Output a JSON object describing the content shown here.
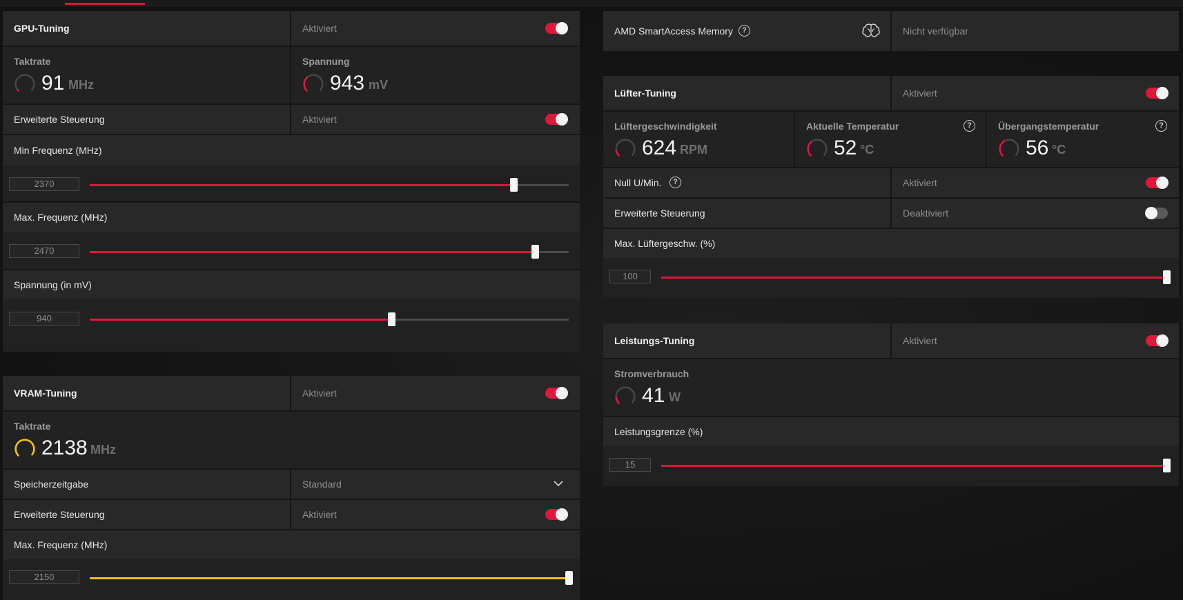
{
  "colors": {
    "accent": "#e0163a",
    "vram_accent": "#f5c211",
    "background": "#141414"
  },
  "gpu_tuning": {
    "title": "GPU-Tuning",
    "state": "Aktiviert",
    "enabled": true,
    "clock": {
      "label": "Taktrate",
      "value": "91",
      "unit": "MHz",
      "fraction": 0.03
    },
    "voltage": {
      "label": "Spannung",
      "value": "943",
      "unit": "mV",
      "fraction": 0.35
    },
    "advanced": {
      "label": "Erweiterte Steuerung",
      "state": "Aktiviert",
      "enabled": true
    },
    "min_freq": {
      "label": "Min Frequenz (MHz)",
      "value": "2370",
      "fraction": 0.885
    },
    "max_freq": {
      "label": "Max. Frequenz (MHz)",
      "value": "2470",
      "fraction": 0.93
    },
    "voltage_slider": {
      "label": "Spannung (in mV)",
      "value": "940",
      "fraction": 0.63
    }
  },
  "vram_tuning": {
    "title": "VRAM-Tuning",
    "state": "Aktiviert",
    "enabled": true,
    "clock": {
      "label": "Taktrate",
      "value": "2138",
      "unit": "MHz",
      "fraction": 0.97
    },
    "memory_timing": {
      "label": "Speicherzeitgabe",
      "value": "Standard"
    },
    "advanced": {
      "label": "Erweiterte Steuerung",
      "state": "Aktiviert",
      "enabled": true
    },
    "max_freq": {
      "label": "Max. Frequenz (MHz)",
      "value": "2150",
      "fraction": 1.0
    }
  },
  "smart_access": {
    "label": "AMD SmartAccess Memory",
    "state": "Nicht verfügbar",
    "help": "?",
    "icon": "brain-icon"
  },
  "fan_tuning": {
    "title": "Lüfter-Tuning",
    "state": "Aktiviert",
    "enabled": true,
    "fan_speed": {
      "label": "Lüftergeschwindigkeit",
      "value": "624",
      "unit": "RPM",
      "fraction": 0.12
    },
    "current_temp": {
      "label": "Aktuelle Temperatur",
      "value": "52",
      "unit": "°C",
      "fraction": 0.35,
      "help": "?"
    },
    "junction_temp": {
      "label": "Übergangstemperatur",
      "value": "56",
      "unit": "°C",
      "fraction": 0.38,
      "help": "?"
    },
    "zero_rpm": {
      "label": "Null U/Min.",
      "state": "Aktiviert",
      "enabled": true,
      "help": "?"
    },
    "advanced": {
      "label": "Erweiterte Steuerung",
      "state": "Deaktiviert",
      "enabled": false
    },
    "max_speed": {
      "label": "Max. Lüftergeschw. (%)",
      "value": "100",
      "fraction": 1.0
    }
  },
  "power_tuning": {
    "title": "Leistungs-Tuning",
    "state": "Aktiviert",
    "enabled": true,
    "power": {
      "label": "Stromverbrauch",
      "value": "41",
      "unit": "W",
      "fraction": 0.15
    },
    "limit": {
      "label": "Leistungsgrenze (%)",
      "value": "15",
      "fraction": 1.0
    }
  }
}
